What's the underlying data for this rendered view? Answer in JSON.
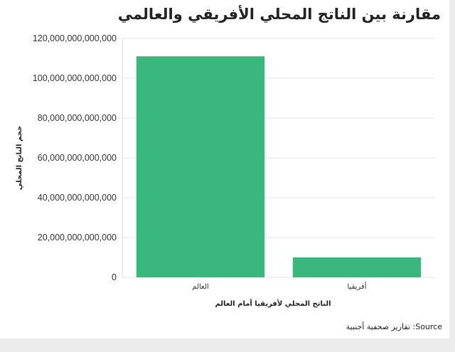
{
  "chart_data": {
    "type": "bar",
    "title": "مقارنة بين الناتج المحلي الأفريقي والعالمي",
    "categories": [
      "العالم",
      "أفريقيا"
    ],
    "values": [
      111000000000000,
      10000000000000
    ],
    "xlabel": "الناتج المحلي لأفريقيا أمام العالم",
    "ylabel": "حجم الناتج المحلي",
    "ylim": [
      0,
      120000000000000
    ],
    "yticks": [
      0,
      20000000000000,
      40000000000000,
      60000000000000,
      80000000000000,
      100000000000000,
      120000000000000
    ],
    "ytick_labels": [
      "0",
      "20,000,000,000,000",
      "40,000,000,000,000",
      "60,000,000,000,000",
      "80,000,000,000,000",
      "100,000,000,000,000",
      "120,000,000,000,000"
    ],
    "bar_color": "#38b87c",
    "grid": "horizontal",
    "source": "Source: تقارير صحفية أجنبية"
  }
}
